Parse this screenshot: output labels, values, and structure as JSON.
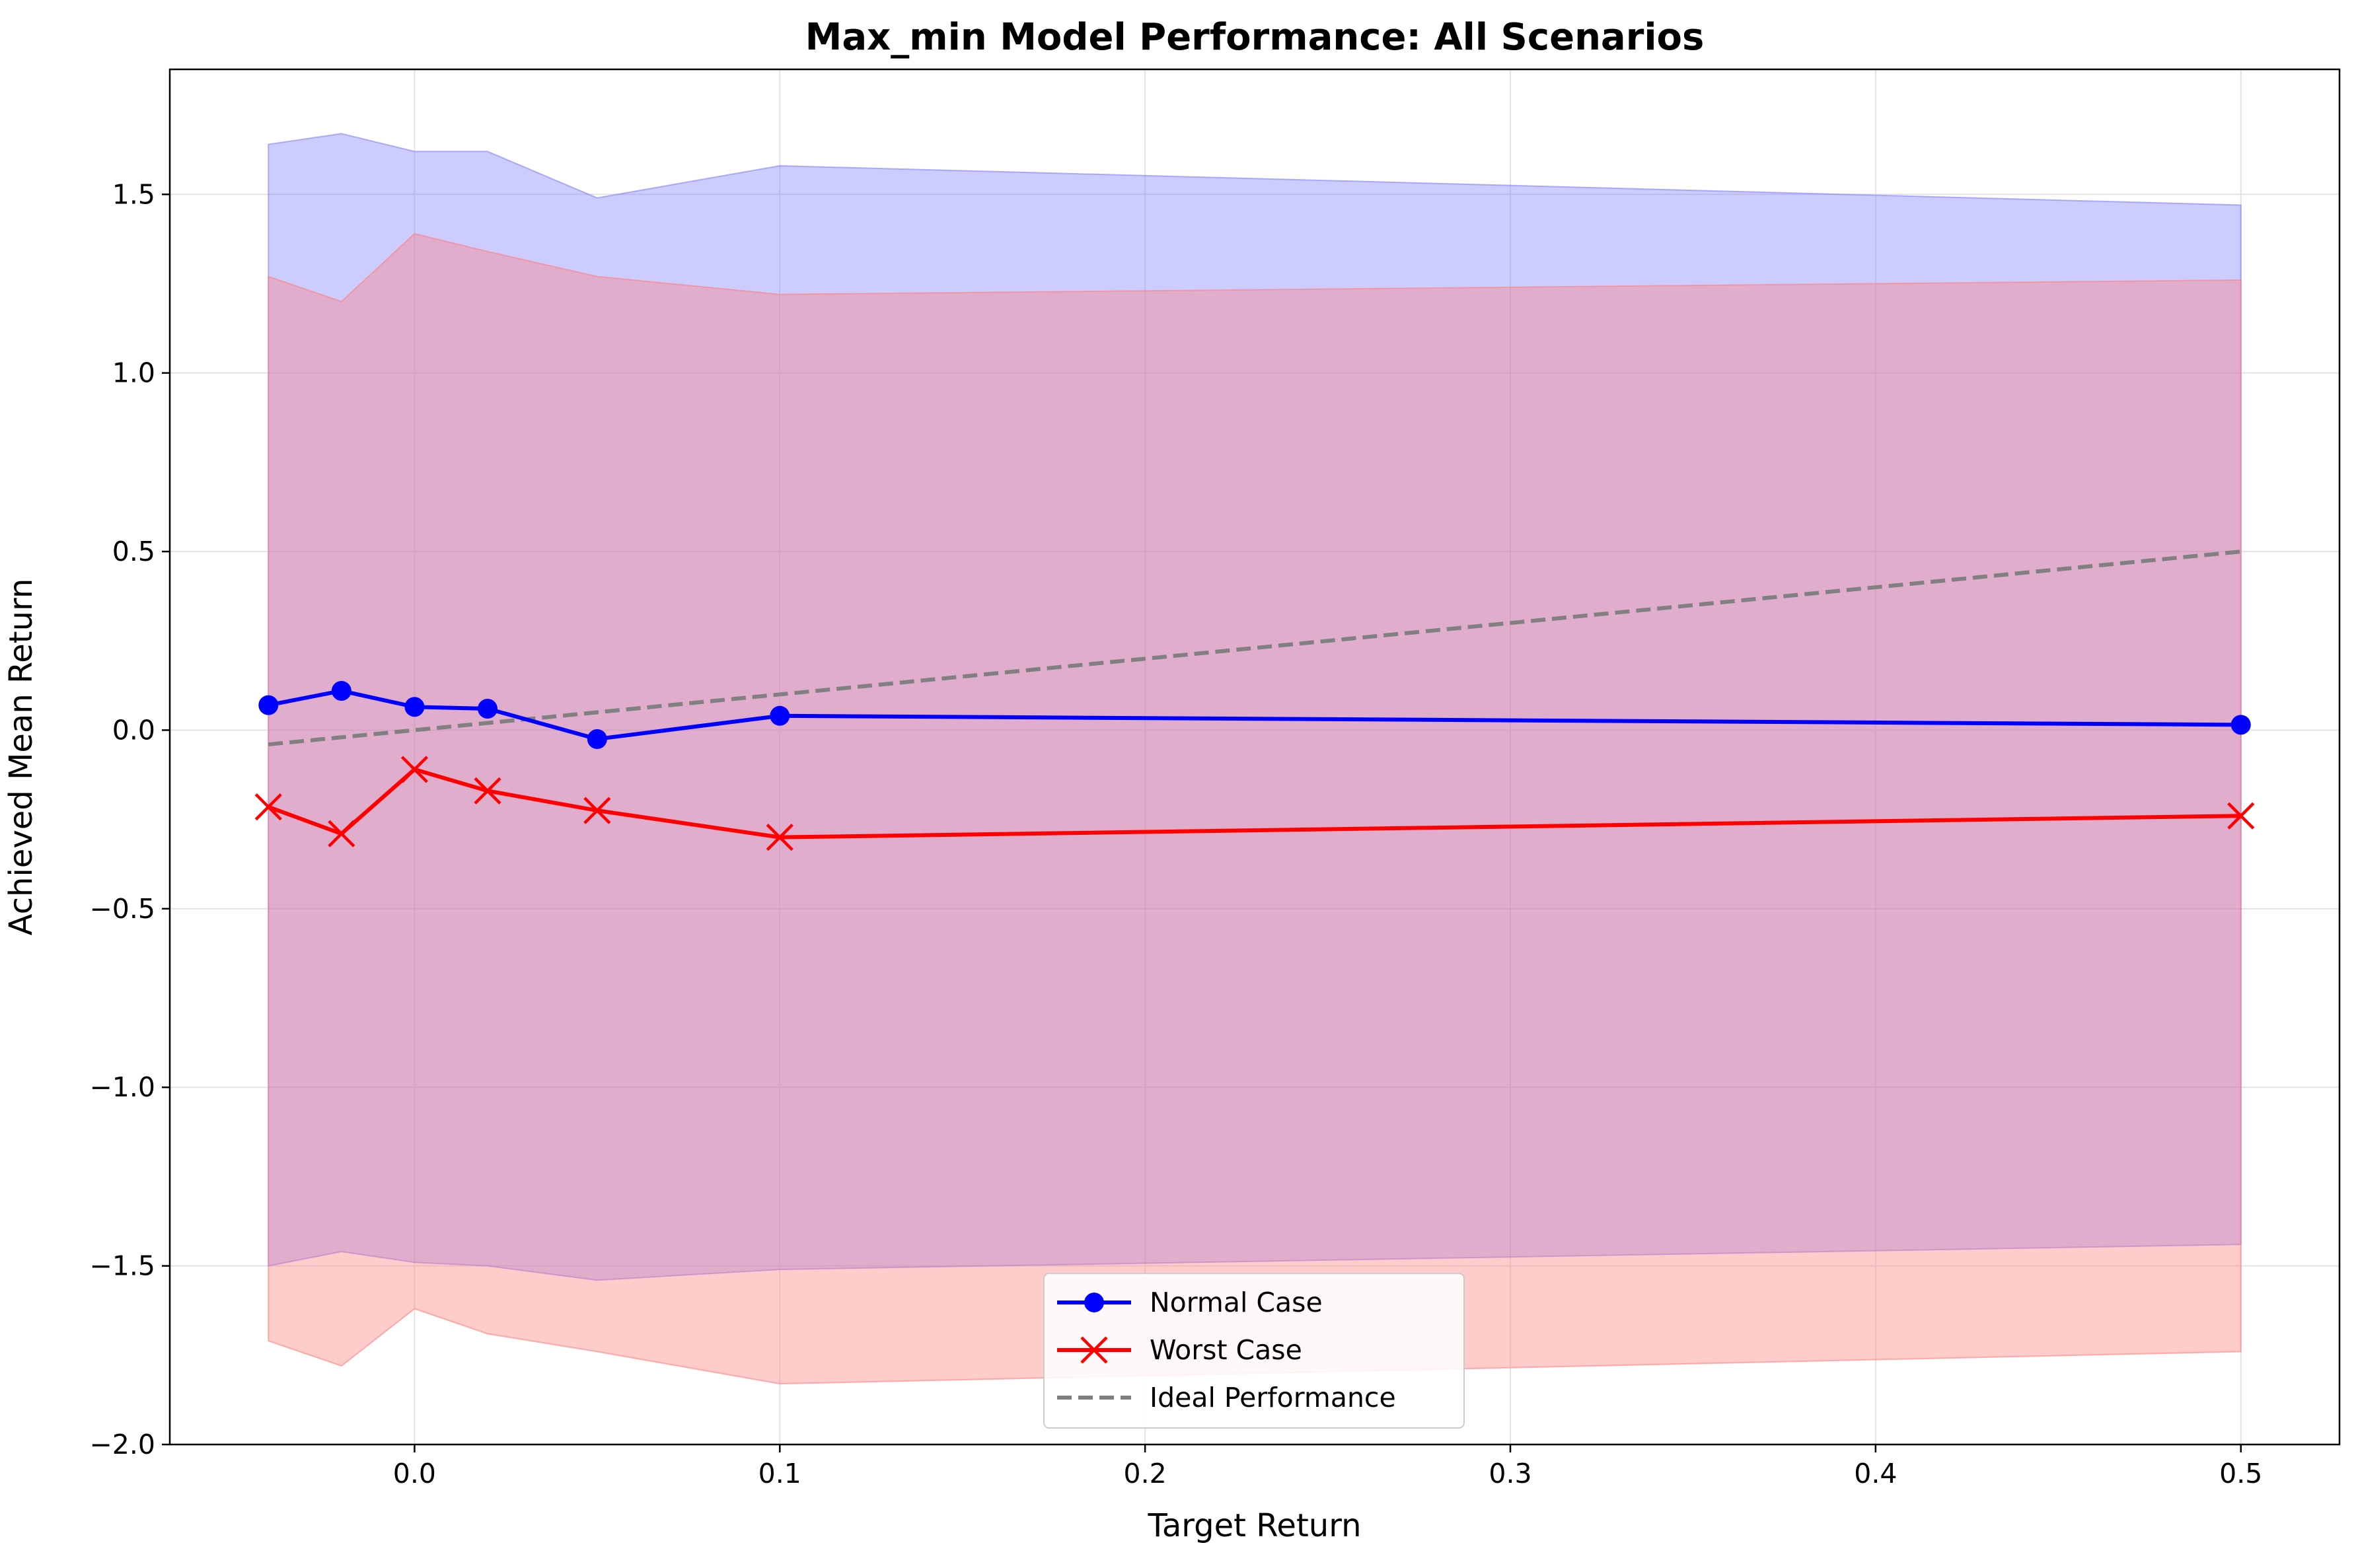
{
  "chart_data": {
    "type": "line",
    "title": "Max_min Model Performance: All Scenarios",
    "xlabel": "Target Return",
    "ylabel": "Achieved Mean Return",
    "xlim": [
      -0.067,
      0.527
    ],
    "ylim": [
      -2.0,
      1.85
    ],
    "xticks": [
      0.0,
      0.1,
      0.2,
      0.3,
      0.4,
      0.5
    ],
    "xtick_labels": [
      "0.0",
      "0.1",
      "0.2",
      "0.3",
      "0.4",
      "0.5"
    ],
    "yticks": [
      -2.0,
      -1.5,
      -1.0,
      -0.5,
      0.0,
      0.5,
      1.0,
      1.5
    ],
    "ytick_labels": [
      "−2.0",
      "−1.5",
      "−1.0",
      "−0.5",
      "0.0",
      "0.5",
      "1.0",
      "1.5"
    ],
    "grid": true,
    "legend_position": "bottom-center",
    "x": [
      -0.04,
      -0.02,
      0.0,
      0.02,
      0.05,
      0.1,
      0.5
    ],
    "series": [
      {
        "name": "Normal Case",
        "color": "#0000ff",
        "marker": "circle",
        "values": [
          0.07,
          0.11,
          0.065,
          0.06,
          -0.025,
          0.04,
          0.015
        ],
        "band_upper": [
          1.64,
          1.67,
          1.62,
          1.62,
          1.49,
          1.58,
          1.47
        ],
        "band_lower": [
          -1.5,
          -1.46,
          -1.49,
          -1.5,
          -1.54,
          -1.51,
          -1.44
        ],
        "band_color": "#8080ff"
      },
      {
        "name": "Worst Case",
        "color": "#ff0000",
        "marker": "x",
        "values": [
          -0.215,
          -0.29,
          -0.11,
          -0.17,
          -0.225,
          -0.3,
          -0.24
        ],
        "band_upper": [
          1.27,
          1.2,
          1.39,
          1.34,
          1.27,
          1.22,
          1.26
        ],
        "band_lower": [
          -1.71,
          -1.78,
          -1.62,
          -1.69,
          -1.74,
          -1.83,
          -1.74
        ],
        "band_color": "#ff8080"
      },
      {
        "name": "Ideal Performance",
        "color": "#808080",
        "style": "dashed",
        "x": [
          -0.04,
          0.5
        ],
        "values": [
          -0.04,
          0.5
        ]
      }
    ]
  }
}
